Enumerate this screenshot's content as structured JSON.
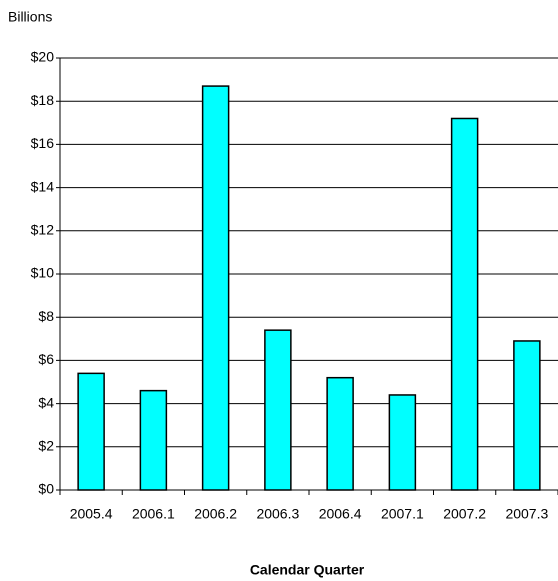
{
  "chart_data": {
    "type": "bar",
    "y_axis_label": "Billions",
    "x_axis_label": "Calendar Quarter",
    "categories": [
      "2005.4",
      "2006.1",
      "2006.2",
      "2006.3",
      "2006.4",
      "2007.1",
      "2007.2",
      "2007.3"
    ],
    "values": [
      5.4,
      4.6,
      18.7,
      7.4,
      5.2,
      4.4,
      17.2,
      6.9
    ],
    "color": "#00ffff",
    "ylim": [
      0,
      20
    ],
    "yticks": [
      {
        "value": 0,
        "label": "$0"
      },
      {
        "value": 2,
        "label": "$2"
      },
      {
        "value": 4,
        "label": "$4"
      },
      {
        "value": 6,
        "label": "$6"
      },
      {
        "value": 8,
        "label": "$8"
      },
      {
        "value": 10,
        "label": "$10"
      },
      {
        "value": 12,
        "label": "$12"
      },
      {
        "value": 14,
        "label": "$14"
      },
      {
        "value": 16,
        "label": "$16"
      },
      {
        "value": 18,
        "label": "$18"
      },
      {
        "value": 20,
        "label": "$20"
      }
    ],
    "grid": true
  }
}
